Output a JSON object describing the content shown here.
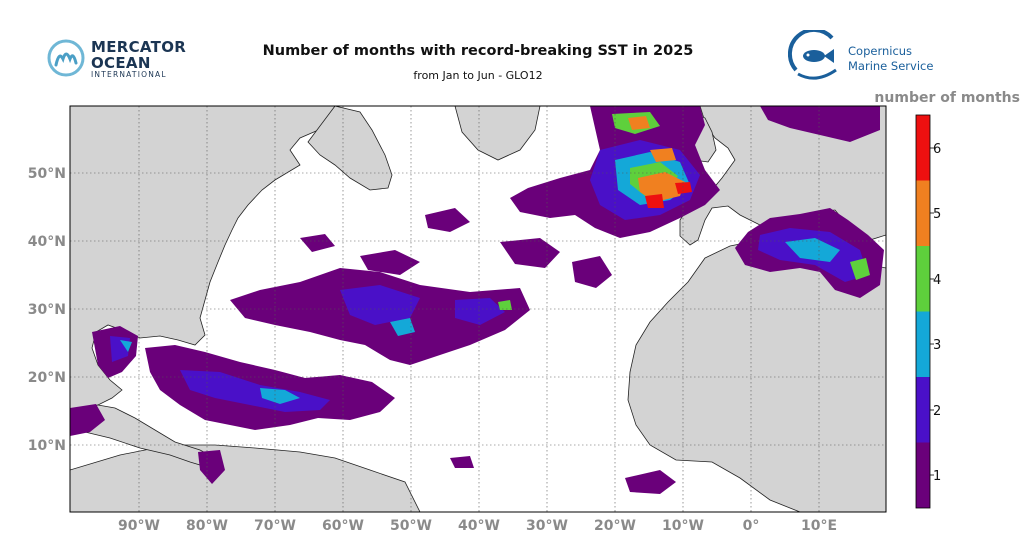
{
  "header": {
    "title": "Number of months with record-breaking SST in 2025",
    "subtitle": "from Jan to Jun - GLO12"
  },
  "logos": {
    "left": {
      "line1": "MERCATOR",
      "line2": "OCEAN",
      "line3": "INTERNATIONAL"
    },
    "right": {
      "line1": "Copernicus",
      "line2": "Marine Service"
    }
  },
  "map": {
    "longitude_labels": [
      "90°W",
      "80°W",
      "70°W",
      "60°W",
      "50°W",
      "40°W",
      "30°W",
      "20°W",
      "10°W",
      "0°",
      "10°E"
    ],
    "latitude_labels": [
      "50°N",
      "40°N",
      "30°N",
      "20°N",
      "10°N"
    ],
    "land_color": "#d3d3d3",
    "ocean_color": "#ffffff",
    "grid": true
  },
  "colorbar": {
    "title": "number of months",
    "ticks": [
      "1",
      "2",
      "3",
      "4",
      "5",
      "6"
    ],
    "colors": [
      "#6a007a",
      "#4a10c8",
      "#14a8d8",
      "#5ed03c",
      "#f08020",
      "#ee1010"
    ]
  }
}
